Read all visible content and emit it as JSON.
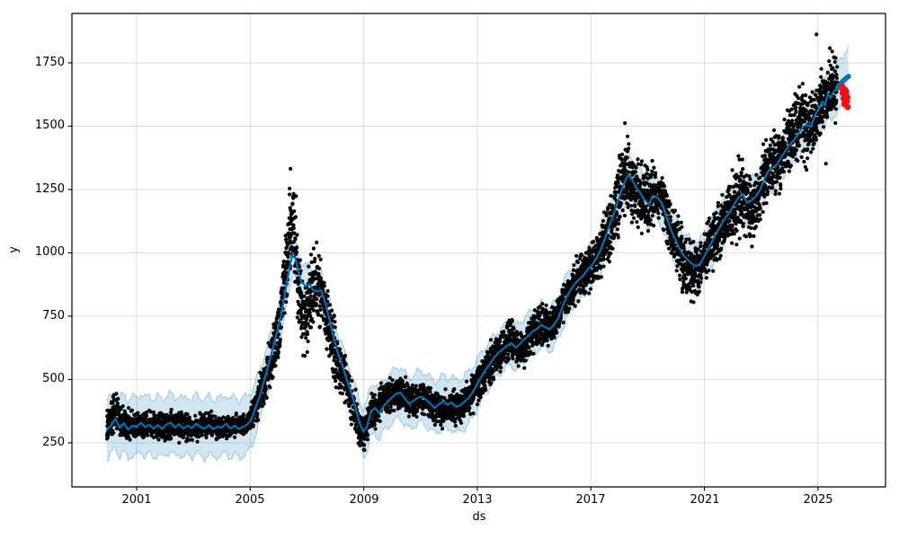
{
  "chart_data": {
    "type": "line+scatter+band",
    "description": "Prophet-style time series forecast: black actual points, blue forecast line with light blue uncertainty interval, thick blue future forecast segment, red anomaly points at the end",
    "title": "",
    "xlabel": "ds",
    "ylabel": "y",
    "xlim": [
      1998.72,
      2027.38
    ],
    "ylim": [
      76,
      1945
    ],
    "xtick_values": [
      2001,
      2005,
      2009,
      2013,
      2017,
      2021,
      2025
    ],
    "xticklabels": [
      "2001",
      "2005",
      "2009",
      "2013",
      "2017",
      "2021",
      "2025"
    ],
    "ytick_values": [
      250,
      500,
      750,
      1000,
      1250,
      1500,
      1750
    ],
    "yticklabels": [
      "250",
      "500",
      "750",
      "1000",
      "1250",
      "1500",
      "1750"
    ],
    "grid": true,
    "legend": "none",
    "colors": {
      "forecast_line": "#0072B2",
      "uncertainty_fill": "rgba(0,114,178,0.18)",
      "uncertainty_edge": "rgba(0,114,178,0.32)",
      "actuals": "#000000",
      "anomalies": "#ef1010",
      "grid": "#d9d9d9",
      "spine": "#000000"
    },
    "forecast": [
      [
        1999.95,
        300
      ],
      [
        2000.1,
        320
      ],
      [
        2000.25,
        345
      ],
      [
        2000.4,
        310
      ],
      [
        2000.55,
        328
      ],
      [
        2000.7,
        302
      ],
      [
        2000.85,
        318
      ],
      [
        2001,
        312
      ],
      [
        2001.15,
        330
      ],
      [
        2001.3,
        312
      ],
      [
        2001.45,
        322
      ],
      [
        2001.6,
        306
      ],
      [
        2001.75,
        320
      ],
      [
        2001.9,
        305
      ],
      [
        2002.05,
        322
      ],
      [
        2002.2,
        330
      ],
      [
        2002.35,
        310
      ],
      [
        2002.5,
        324
      ],
      [
        2002.65,
        306
      ],
      [
        2002.8,
        318
      ],
      [
        2002.95,
        308
      ],
      [
        2003.1,
        326
      ],
      [
        2003.25,
        312
      ],
      [
        2003.4,
        306
      ],
      [
        2003.55,
        320
      ],
      [
        2003.7,
        304
      ],
      [
        2003.85,
        314
      ],
      [
        2004,
        310
      ],
      [
        2004.15,
        326
      ],
      [
        2004.3,
        306
      ],
      [
        2004.45,
        318
      ],
      [
        2004.6,
        304
      ],
      [
        2004.75,
        314
      ],
      [
        2004.9,
        322
      ],
      [
        2005.05,
        345
      ],
      [
        2005.2,
        392
      ],
      [
        2005.35,
        440
      ],
      [
        2005.5,
        500
      ],
      [
        2005.65,
        560
      ],
      [
        2005.8,
        625
      ],
      [
        2005.95,
        690
      ],
      [
        2006.1,
        760
      ],
      [
        2006.25,
        855
      ],
      [
        2006.4,
        950
      ],
      [
        2006.5,
        1000
      ],
      [
        2006.6,
        975
      ],
      [
        2006.7,
        925
      ],
      [
        2006.8,
        885
      ],
      [
        2006.95,
        870
      ],
      [
        2007.1,
        876
      ],
      [
        2007.2,
        855
      ],
      [
        2007.35,
        848
      ],
      [
        2007.5,
        852
      ],
      [
        2007.65,
        800
      ],
      [
        2007.8,
        735
      ],
      [
        2007.95,
        660
      ],
      [
        2008.1,
        600
      ],
      [
        2008.25,
        555
      ],
      [
        2008.4,
        500
      ],
      [
        2008.55,
        450
      ],
      [
        2008.7,
        395
      ],
      [
        2008.85,
        330
      ],
      [
        2008.97,
        295
      ],
      [
        2009.1,
        310
      ],
      [
        2009.25,
        372
      ],
      [
        2009.4,
        388
      ],
      [
        2009.55,
        366
      ],
      [
        2009.7,
        396
      ],
      [
        2009.85,
        412
      ],
      [
        2010,
        430
      ],
      [
        2010.15,
        444
      ],
      [
        2010.3,
        448
      ],
      [
        2010.45,
        424
      ],
      [
        2010.6,
        404
      ],
      [
        2010.75,
        416
      ],
      [
        2010.9,
        428
      ],
      [
        2011.05,
        432
      ],
      [
        2011.2,
        420
      ],
      [
        2011.35,
        404
      ],
      [
        2011.5,
        388
      ],
      [
        2011.65,
        402
      ],
      [
        2011.8,
        414
      ],
      [
        2011.95,
        400
      ],
      [
        2012.1,
        410
      ],
      [
        2012.25,
        392
      ],
      [
        2012.4,
        398
      ],
      [
        2012.55,
        412
      ],
      [
        2012.7,
        428
      ],
      [
        2012.85,
        452
      ],
      [
        2013,
        482
      ],
      [
        2013.15,
        512
      ],
      [
        2013.3,
        540
      ],
      [
        2013.45,
        562
      ],
      [
        2013.6,
        588
      ],
      [
        2013.75,
        606
      ],
      [
        2013.9,
        620
      ],
      [
        2014.05,
        634
      ],
      [
        2014.2,
        644
      ],
      [
        2014.35,
        626
      ],
      [
        2014.5,
        640
      ],
      [
        2014.65,
        658
      ],
      [
        2014.8,
        672
      ],
      [
        2014.95,
        690
      ],
      [
        2015.1,
        700
      ],
      [
        2015.25,
        716
      ],
      [
        2015.4,
        706
      ],
      [
        2015.55,
        698
      ],
      [
        2015.7,
        716
      ],
      [
        2015.85,
        742
      ],
      [
        2016,
        788
      ],
      [
        2016.15,
        826
      ],
      [
        2016.3,
        856
      ],
      [
        2016.45,
        880
      ],
      [
        2016.6,
        896
      ],
      [
        2016.75,
        912
      ],
      [
        2016.9,
        936
      ],
      [
        2017.05,
        952
      ],
      [
        2017.2,
        980
      ],
      [
        2017.35,
        1014
      ],
      [
        2017.5,
        1058
      ],
      [
        2017.65,
        1106
      ],
      [
        2017.8,
        1152
      ],
      [
        2017.95,
        1204
      ],
      [
        2018.1,
        1252
      ],
      [
        2018.25,
        1296
      ],
      [
        2018.35,
        1307
      ],
      [
        2018.45,
        1288
      ],
      [
        2018.6,
        1258
      ],
      [
        2018.75,
        1235
      ],
      [
        2018.9,
        1208
      ],
      [
        2019.05,
        1192
      ],
      [
        2019.2,
        1226
      ],
      [
        2019.35,
        1218
      ],
      [
        2019.5,
        1196
      ],
      [
        2019.65,
        1148
      ],
      [
        2019.8,
        1098
      ],
      [
        2019.95,
        1058
      ],
      [
        2020.1,
        1022
      ],
      [
        2020.25,
        992
      ],
      [
        2020.4,
        974
      ],
      [
        2020.55,
        958
      ],
      [
        2020.7,
        948
      ],
      [
        2020.85,
        956
      ],
      [
        2021,
        988
      ],
      [
        2021.15,
        1018
      ],
      [
        2021.3,
        1052
      ],
      [
        2021.45,
        1082
      ],
      [
        2021.6,
        1114
      ],
      [
        2021.75,
        1140
      ],
      [
        2021.9,
        1162
      ],
      [
        2022.05,
        1192
      ],
      [
        2022.2,
        1218
      ],
      [
        2022.35,
        1230
      ],
      [
        2022.5,
        1198
      ],
      [
        2022.65,
        1206
      ],
      [
        2022.8,
        1222
      ],
      [
        2022.95,
        1246
      ],
      [
        2023.1,
        1288
      ],
      [
        2023.25,
        1322
      ],
      [
        2023.4,
        1336
      ],
      [
        2023.55,
        1348
      ],
      [
        2023.7,
        1376
      ],
      [
        2023.85,
        1402
      ],
      [
        2024,
        1428
      ],
      [
        2024.15,
        1444
      ],
      [
        2024.3,
        1468
      ],
      [
        2024.45,
        1496
      ],
      [
        2024.6,
        1506
      ],
      [
        2024.75,
        1498
      ],
      [
        2024.9,
        1544
      ],
      [
        2025.05,
        1572
      ],
      [
        2025.15,
        1598
      ],
      [
        2025.25,
        1582
      ],
      [
        2025.35,
        1628
      ],
      [
        2025.45,
        1612
      ],
      [
        2025.55,
        1636
      ],
      [
        2025.68,
        1650
      ]
    ],
    "forecast_future": [
      [
        2025.68,
        1650
      ],
      [
        2025.78,
        1666
      ],
      [
        2025.88,
        1678
      ],
      [
        2025.98,
        1688
      ],
      [
        2026.08,
        1697
      ]
    ],
    "band_halfwidth": [
      [
        1999.95,
        115
      ],
      [
        2004.8,
        115
      ],
      [
        2005.6,
        95
      ],
      [
        2006.4,
        78
      ],
      [
        2008.6,
        78
      ],
      [
        2009.1,
        100
      ],
      [
        2012.7,
        104
      ],
      [
        2013.6,
        86
      ],
      [
        2018.5,
        86
      ],
      [
        2020.9,
        95
      ],
      [
        2023.5,
        85
      ],
      [
        2025.68,
        95
      ],
      [
        2026.08,
        112
      ]
    ],
    "band_wave": {
      "amp1": 12,
      "freq1": 2.3,
      "amp2": 5,
      "freq2": 7.1
    },
    "actuals_keypoints": [
      [
        1999.95,
        310,
        35
      ],
      [
        2000.25,
        375,
        55
      ],
      [
        2000.45,
        330,
        45
      ],
      [
        2000.7,
        312,
        38
      ],
      [
        2001,
        316,
        36
      ],
      [
        2001.5,
        320,
        36
      ],
      [
        2002,
        314,
        36
      ],
      [
        2002.5,
        318,
        36
      ],
      [
        2003,
        312,
        34
      ],
      [
        2003.5,
        318,
        34
      ],
      [
        2004,
        310,
        30
      ],
      [
        2004.5,
        314,
        28
      ],
      [
        2004.9,
        325,
        26
      ],
      [
        2005.2,
        392,
        45
      ],
      [
        2005.5,
        485,
        55
      ],
      [
        2005.8,
        605,
        60
      ],
      [
        2006,
        695,
        70
      ],
      [
        2006.2,
        860,
        95
      ],
      [
        2006.35,
        1030,
        115
      ],
      [
        2006.5,
        1140,
        120
      ],
      [
        2006.62,
        1000,
        130
      ],
      [
        2006.75,
        830,
        110
      ],
      [
        2006.9,
        730,
        90
      ],
      [
        2007.1,
        800,
        95
      ],
      [
        2007.3,
        880,
        90
      ],
      [
        2007.5,
        845,
        90
      ],
      [
        2007.7,
        765,
        85
      ],
      [
        2007.9,
        655,
        80
      ],
      [
        2008.1,
        575,
        70
      ],
      [
        2008.3,
        505,
        60
      ],
      [
        2008.5,
        442,
        55
      ],
      [
        2008.7,
        372,
        55
      ],
      [
        2008.9,
        272,
        45
      ],
      [
        2009.05,
        302,
        45
      ],
      [
        2009.25,
        378,
        45
      ],
      [
        2009.5,
        392,
        45
      ],
      [
        2009.75,
        420,
        45
      ],
      [
        2010,
        440,
        45
      ],
      [
        2010.25,
        452,
        42
      ],
      [
        2010.5,
        430,
        45
      ],
      [
        2010.75,
        402,
        42
      ],
      [
        2011,
        428,
        40
      ],
      [
        2011.25,
        418,
        40
      ],
      [
        2011.5,
        390,
        40
      ],
      [
        2011.75,
        372,
        40
      ],
      [
        2012,
        398,
        45
      ],
      [
        2012.25,
        382,
        40
      ],
      [
        2012.5,
        400,
        40
      ],
      [
        2012.75,
        438,
        45
      ],
      [
        2013,
        480,
        50
      ],
      [
        2013.25,
        528,
        50
      ],
      [
        2013.5,
        568,
        50
      ],
      [
        2013.75,
        604,
        50
      ],
      [
        2014,
        630,
        50
      ],
      [
        2014.2,
        660,
        50
      ],
      [
        2014.4,
        632,
        50
      ],
      [
        2014.6,
        612,
        46
      ],
      [
        2014.8,
        658,
        50
      ],
      [
        2015,
        694,
        50
      ],
      [
        2015.25,
        718,
        50
      ],
      [
        2015.5,
        702,
        50
      ],
      [
        2015.75,
        728,
        52
      ],
      [
        2016,
        788,
        55
      ],
      [
        2016.25,
        848,
        55
      ],
      [
        2016.5,
        888,
        58
      ],
      [
        2016.75,
        914,
        58
      ],
      [
        2017,
        944,
        60
      ],
      [
        2017.25,
        988,
        64
      ],
      [
        2017.5,
        1058,
        70
      ],
      [
        2017.75,
        1130,
        80
      ],
      [
        2018,
        1230,
        100
      ],
      [
        2018.2,
        1320,
        100
      ],
      [
        2018.35,
        1292,
        95
      ],
      [
        2018.5,
        1252,
        90
      ],
      [
        2018.7,
        1228,
        88
      ],
      [
        2018.9,
        1202,
        88
      ],
      [
        2019.1,
        1225,
        80
      ],
      [
        2019.3,
        1232,
        62
      ],
      [
        2019.5,
        1225,
        62
      ],
      [
        2019.7,
        1140,
        75
      ],
      [
        2019.9,
        1075,
        78
      ],
      [
        2020.1,
        1015,
        80
      ],
      [
        2020.3,
        965,
        78
      ],
      [
        2020.5,
        928,
        70
      ],
      [
        2020.7,
        938,
        70
      ],
      [
        2020.9,
        962,
        70
      ],
      [
        2021.1,
        1008,
        72
      ],
      [
        2021.3,
        1052,
        74
      ],
      [
        2021.5,
        1092,
        76
      ],
      [
        2021.7,
        1122,
        80
      ],
      [
        2021.9,
        1155,
        85
      ],
      [
        2022.1,
        1195,
        90
      ],
      [
        2022.35,
        1228,
        95
      ],
      [
        2022.55,
        1188,
        92
      ],
      [
        2022.7,
        1152,
        88
      ],
      [
        2022.85,
        1222,
        85
      ],
      [
        2023,
        1268,
        82
      ],
      [
        2023.2,
        1318,
        82
      ],
      [
        2023.4,
        1338,
        80
      ],
      [
        2023.6,
        1352,
        80
      ],
      [
        2023.8,
        1398,
        80
      ],
      [
        2024,
        1428,
        82
      ],
      [
        2024.2,
        1468,
        88
      ],
      [
        2024.4,
        1538,
        92
      ],
      [
        2024.55,
        1502,
        90
      ],
      [
        2024.7,
        1482,
        82
      ],
      [
        2024.85,
        1538,
        82
      ],
      [
        2025,
        1568,
        82
      ],
      [
        2025.15,
        1618,
        88
      ],
      [
        2025.3,
        1598,
        82
      ],
      [
        2025.45,
        1638,
        82
      ],
      [
        2025.6,
        1648,
        80
      ],
      [
        2025.68,
        1640,
        72
      ]
    ],
    "actuals_count": 6200,
    "actuals_dot_radius": 2.1,
    "outlier_points": [
      [
        2024.95,
        1862
      ],
      [
        2024.6,
        1328
      ],
      [
        2025.28,
        1352
      ],
      [
        2025.42,
        1808
      ],
      [
        2025.5,
        1795
      ],
      [
        2025.56,
        1772
      ],
      [
        2020.62,
        805
      ],
      [
        2018.2,
        1512
      ],
      [
        2006.42,
        1332
      ]
    ],
    "anomalies": [
      [
        2025.84,
        1650
      ],
      [
        2025.87,
        1631
      ],
      [
        2025.9,
        1610
      ],
      [
        2025.93,
        1588
      ],
      [
        2025.96,
        1644
      ],
      [
        2025.99,
        1620
      ],
      [
        2026.02,
        1598
      ],
      [
        2026.05,
        1575
      ],
      [
        2025.86,
        1657
      ],
      [
        2025.95,
        1602
      ],
      [
        2026.0,
        1636
      ],
      [
        2026.04,
        1614
      ]
    ],
    "anomaly_dot_radius": 3.4
  }
}
